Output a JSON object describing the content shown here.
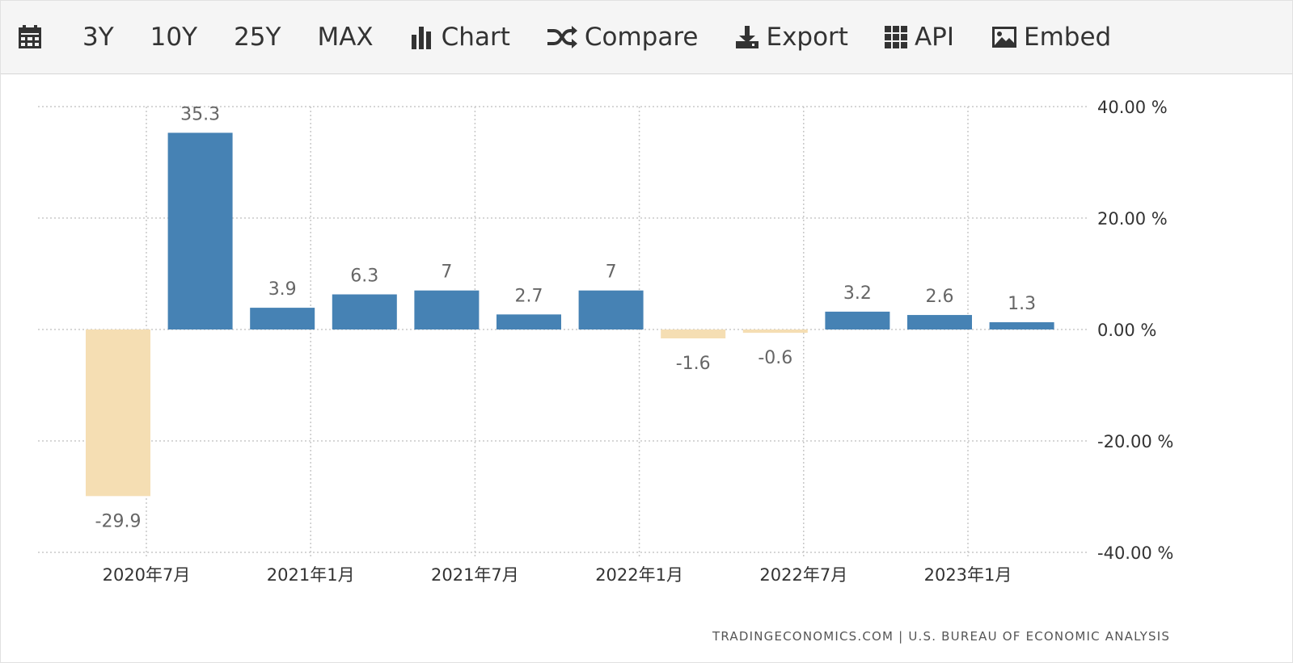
{
  "toolbar": {
    "calendar_icon": "calendar-icon",
    "range_3y": "3Y",
    "range_10y": "10Y",
    "range_25y": "25Y",
    "range_max": "MAX",
    "chart_label": "Chart",
    "chart_icon": "bar-chart-icon",
    "compare_label": "Compare",
    "compare_icon": "shuffle-icon",
    "export_label": "Export",
    "export_icon": "download-icon",
    "api_label": "API",
    "api_icon": "grid-icon",
    "embed_label": "Embed",
    "embed_icon": "image-icon"
  },
  "colors": {
    "positive_bar": "#4682b4",
    "negative_bar": "#f5deb3",
    "grid": "#c8c8c8",
    "axis_text": "#333333",
    "data_label_text": "#666666",
    "toolbar_bg": "#f5f5f5"
  },
  "chart_data": {
    "type": "bar",
    "categories": [
      "2020Q3",
      "2020Q4",
      "2021Q1",
      "2021Q2",
      "2021Q3",
      "2021Q4",
      "2022Q1",
      "2022Q2",
      "2022Q3",
      "2022Q4",
      "2023Q1",
      "2023Q2"
    ],
    "values": [
      -29.9,
      35.3,
      3.9,
      6.3,
      7,
      2.7,
      7,
      -1.6,
      -0.6,
      3.2,
      2.6,
      1.3
    ],
    "data_labels": [
      "-29.9",
      "35.3",
      "3.9",
      "6.3",
      "7",
      "2.7",
      "7",
      "-1.6",
      "-0.6",
      "3.2",
      "2.6",
      "1.3"
    ],
    "x_tick_labels": [
      "2020年7月",
      "2021年1月",
      "2021年7月",
      "2022年1月",
      "2022年7月",
      "2023年1月"
    ],
    "x_tick_categories": [
      "2020Q3",
      "2021Q1",
      "2021Q3",
      "2022Q1",
      "2022Q3",
      "2023Q1"
    ],
    "y_ticks": [
      40,
      20,
      0,
      -20,
      -40
    ],
    "y_tick_labels": [
      "40.00 %",
      "20.00 %",
      "0.00 %",
      "-20.00 %",
      "-40.00 %"
    ],
    "ylim": [
      -40,
      40
    ],
    "y_axis_position": "right",
    "grid": true,
    "grid_style": "dotted",
    "legend": "none",
    "title": "",
    "xlabel": "",
    "ylabel": ""
  },
  "source_text": "TRADINGECONOMICS.COM | U.S. BUREAU OF ECONOMIC ANALYSIS"
}
